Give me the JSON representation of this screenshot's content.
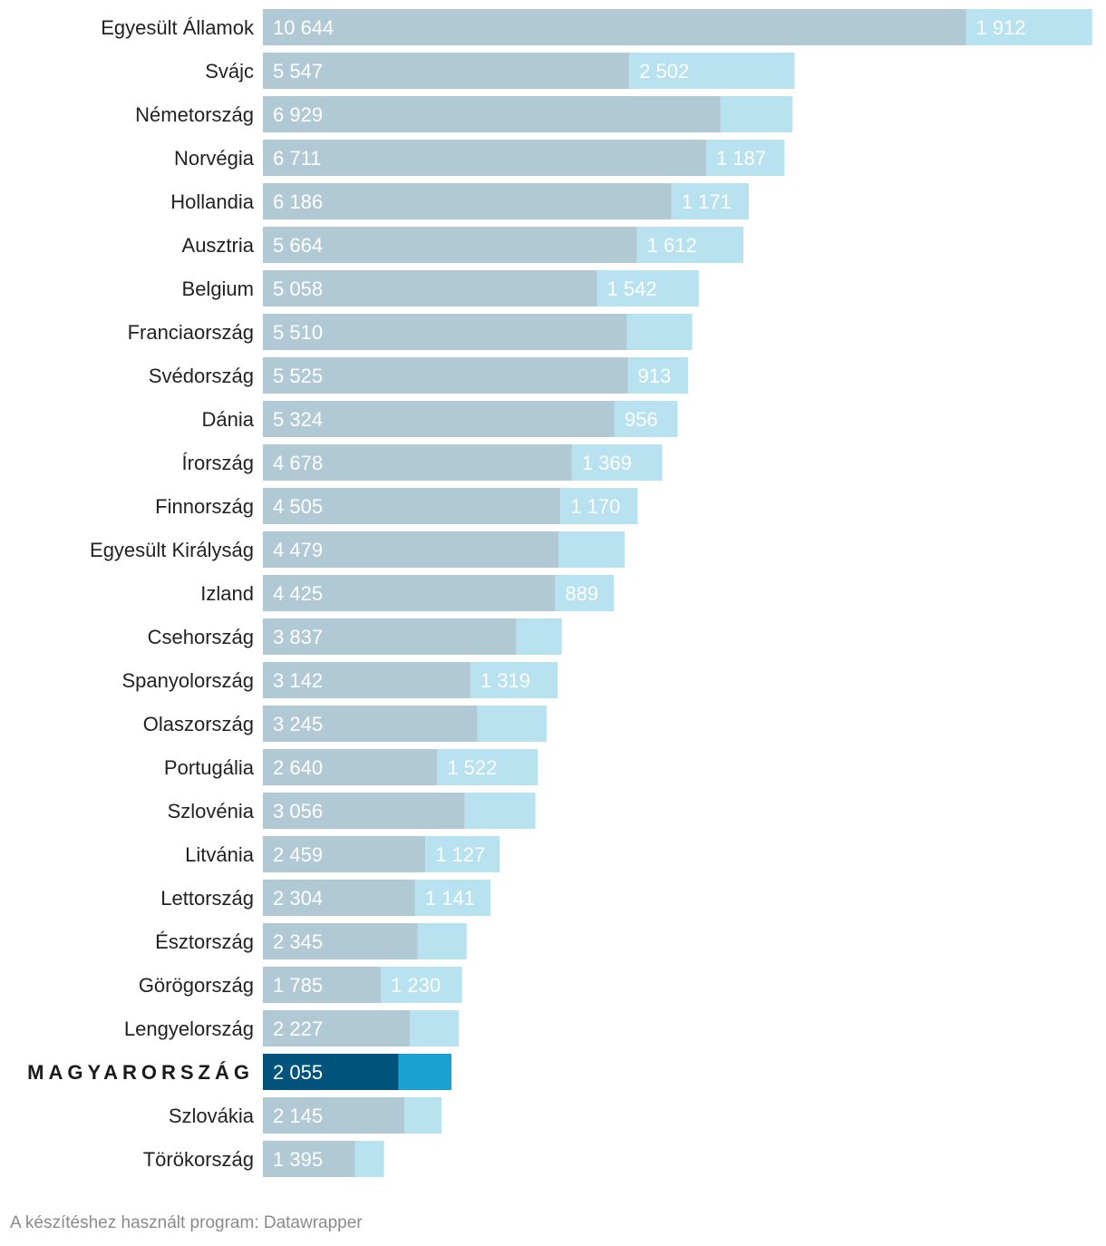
{
  "chart_data": {
    "type": "bar",
    "orientation": "horizontal",
    "stacked": true,
    "categories": [
      "Egyesült Államok",
      "Svájc",
      "Németország",
      "Norvégia",
      "Hollandia",
      "Ausztria",
      "Belgium",
      "Franciaország",
      "Svédország",
      "Dánia",
      "Írország",
      "Finnország",
      "Egyesült Királyság",
      "Izland",
      "Csehország",
      "Spanyolország",
      "Olaszország",
      "Portugália",
      "Szlovénia",
      "Litvánia",
      "Lettország",
      "Észtország",
      "Görögország",
      "Lengyelország",
      "MAGYARORSZÁG",
      "Szlovákia",
      "Törökország"
    ],
    "highlight": "MAGYARORSZÁG",
    "series": [
      {
        "values": [
          10644,
          5547,
          6929,
          6711,
          6186,
          5664,
          5058,
          5510,
          5525,
          5324,
          4678,
          4505,
          4479,
          4425,
          3837,
          3142,
          3245,
          2640,
          3056,
          2459,
          2304,
          2345,
          1785,
          2227,
          2055,
          2145,
          1395
        ],
        "labels": [
          "10 644",
          "5 547",
          "6 929",
          "6 711",
          "6 186",
          "5 664",
          "5 058",
          "5 510",
          "5 525",
          "5 324",
          "4 678",
          "4 505",
          "4 479",
          "4 425",
          "3 837",
          "3 142",
          "3 245",
          "2 640",
          "3 056",
          "2 459",
          "2 304",
          "2 345",
          "1 785",
          "2 227",
          "2 055",
          "2 145",
          "1 395"
        ],
        "color": "#b1c9d5",
        "highlight_color": "#00537b"
      },
      {
        "values": [
          1912,
          2502,
          1090,
          1187,
          1171,
          1612,
          1542,
          990,
          913,
          956,
          1369,
          1170,
          1000,
          889,
          690,
          1319,
          1050,
          1522,
          1070,
          1127,
          1141,
          740,
          1230,
          740,
          800,
          560,
          440
        ],
        "labels": [
          "1 912",
          "2 502",
          "",
          "1 187",
          "1 171",
          "1 612",
          "1 542",
          "",
          "913",
          "956",
          "1 369",
          "1 170",
          "",
          "889",
          "",
          "1 319",
          "",
          "1 522",
          "",
          "1 127",
          "1 141",
          "",
          "1 230",
          "",
          "",
          "",
          ""
        ],
        "color": "#b8e2ef",
        "highlight_color": "#1aa1d1"
      }
    ],
    "xlim": [
      0,
      12600
    ],
    "grid": false,
    "legend": "none"
  },
  "footer": {
    "credit": "A készítéshez használt program: Datawrapper"
  }
}
